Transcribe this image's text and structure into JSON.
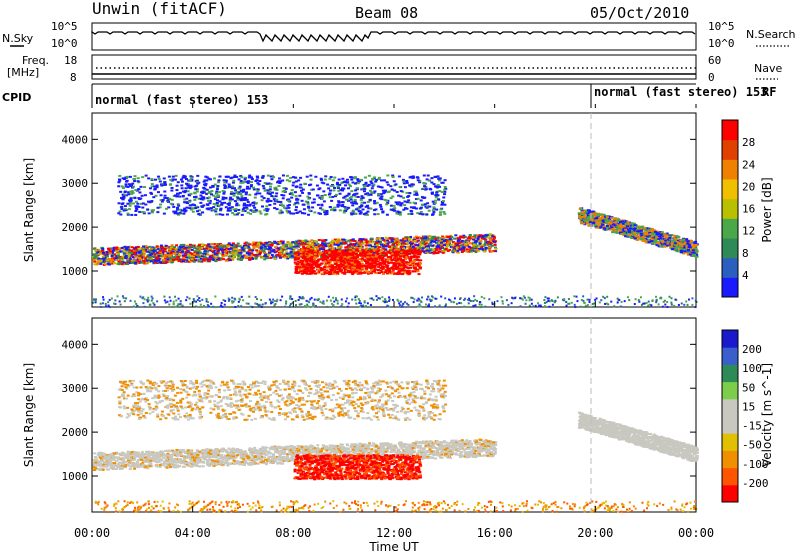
{
  "header": {
    "station": "Unwin (fitACF)",
    "beam": "Beam 08",
    "date": "05/Oct/2010"
  },
  "nsky_panel": {
    "left_label": "N.Sky",
    "right_label": "N.Search",
    "left_ticks": [
      "10^5",
      "10^0"
    ],
    "right_ticks": [
      "10^5",
      "10^0"
    ]
  },
  "freq_panel": {
    "left_label_1": "Freq.",
    "left_label_2": "[MHz]",
    "left_ticks": [
      "18",
      "8"
    ],
    "right_label": "Nave",
    "right_ticks": [
      "60",
      "0"
    ]
  },
  "cpid_panel": {
    "label": "CPID",
    "mode_1": "normal (fast stereo) 153",
    "mode_2": "normal (fast stereo) 153",
    "rf_label": "RF"
  },
  "colors": {
    "power_scale": [
      "#1a1aff",
      "#2b5fbf",
      "#2e8b57",
      "#4aa84a",
      "#b8c000",
      "#f0c000",
      "#f08000",
      "#e04000",
      "#ff0000"
    ],
    "velocity_scale": [
      "#ff0000",
      "#ff5500",
      "#f09000",
      "#e0c000",
      "#c8c8c0",
      "#c8c8c0",
      "#7ccd4a",
      "#2e8b57",
      "#3a5fcd",
      "#1a1acd"
    ]
  },
  "chart_data": [
    {
      "type": "heatmap",
      "name": "power",
      "ylabel": "Slant Range [km]",
      "yticks": [
        "1000",
        "2000",
        "3000",
        "4000"
      ],
      "ylim": [
        180,
        4600
      ],
      "colorbar_label": "Power [dB]",
      "colorbar_ticks": [
        "4",
        "8",
        "12",
        "16",
        "20",
        "24",
        "28"
      ],
      "colorbar_range": [
        0,
        30
      ]
    },
    {
      "type": "heatmap",
      "name": "velocity",
      "ylabel": "Slant Range [km]",
      "yticks": [
        "1000",
        "2000",
        "3000",
        "4000"
      ],
      "ylim": [
        180,
        4600
      ],
      "colorbar_label": "Velocity [m s^-1]",
      "colorbar_ticks": [
        "-200",
        "-100",
        "-50",
        "-15",
        "15",
        "50",
        "100",
        "200"
      ],
      "colorbar_range": [
        -250,
        250
      ]
    }
  ],
  "x_axis": {
    "label": "Time UT",
    "ticks": [
      "00:00",
      "04:00",
      "08:00",
      "12:00",
      "16:00",
      "20:00",
      "00:00"
    ],
    "xlim": [
      0,
      24
    ]
  }
}
